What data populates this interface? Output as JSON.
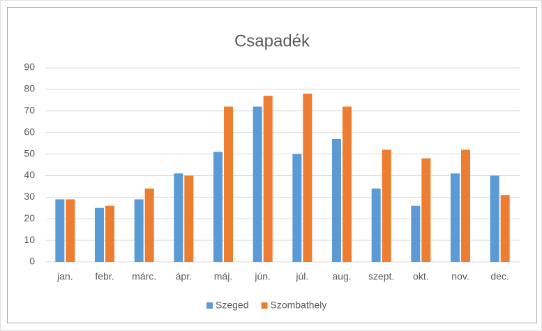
{
  "chart_data": {
    "type": "bar",
    "title": "Csapadék",
    "categories": [
      "jan.",
      "febr.",
      "márc.",
      "ápr.",
      "máj.",
      "jún.",
      "júl.",
      "aug.",
      "szept.",
      "okt.",
      "nov.",
      "dec."
    ],
    "series": [
      {
        "name": "Szeged",
        "color": "#5b9bd5",
        "values": [
          29,
          25,
          29,
          41,
          51,
          72,
          50,
          57,
          34,
          26,
          41,
          40
        ]
      },
      {
        "name": "Szombathely",
        "color": "#ed7d31",
        "values": [
          29,
          26,
          34,
          40,
          72,
          77,
          78,
          72,
          52,
          48,
          52,
          31
        ]
      }
    ],
    "ylim": [
      0,
      90
    ],
    "yticks": [
      0,
      10,
      20,
      30,
      40,
      50,
      60,
      70,
      80,
      90
    ],
    "grid": true,
    "legend": "bottom"
  }
}
